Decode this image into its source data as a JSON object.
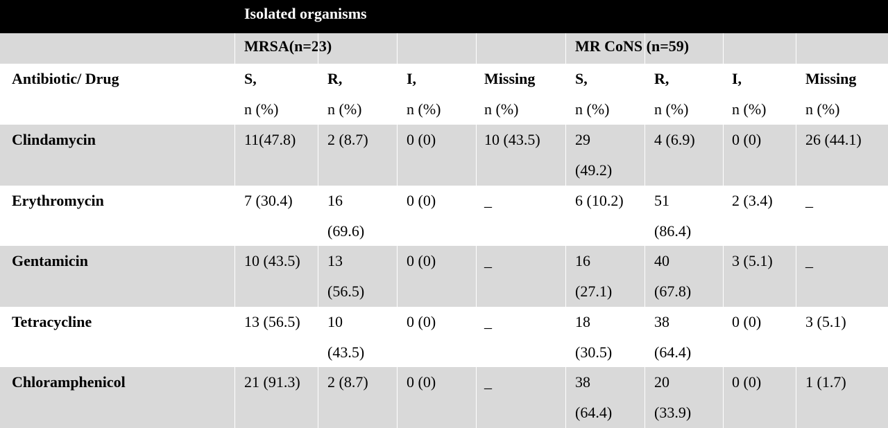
{
  "table": {
    "header_title": "Isolated organisms",
    "groups": [
      "MRSA(n=23)",
      "MR CoNS (n=59)"
    ],
    "first_column_label": "Antibiotic/ Drug",
    "column_headers": [
      "S,",
      "R,",
      "I,",
      "Missing",
      "S,",
      "R,",
      "I,",
      "Missing"
    ],
    "column_units": [
      "n (%)",
      "n (%)",
      "n (%)",
      "n (%)",
      "n (%)",
      "n (%)",
      "n (%)",
      "n (%)"
    ],
    "rows": [
      {
        "drug": "Clindamycin",
        "cells": [
          [
            "11(47.8)"
          ],
          [
            "2 (8.7)"
          ],
          [
            "0 (0)"
          ],
          [
            "10 (43.5)"
          ],
          [
            "29",
            "(49.2)"
          ],
          [
            "4 (6.9)"
          ],
          [
            "0 (0)"
          ],
          [
            "26 (44.1)"
          ]
        ]
      },
      {
        "drug": "Erythromycin",
        "cells": [
          [
            "7 (30.4)"
          ],
          [
            "16",
            "(69.6)"
          ],
          [
            "0 (0)"
          ],
          [
            "_"
          ],
          [
            "6 (10.2)"
          ],
          [
            "51",
            "(86.4)"
          ],
          [
            "2 (3.4)"
          ],
          [
            "_"
          ]
        ]
      },
      {
        "drug": "Gentamicin",
        "cells": [
          [
            "10 (43.5)"
          ],
          [
            "13",
            "(56.5)"
          ],
          [
            "0 (0)"
          ],
          [
            "_"
          ],
          [
            "16",
            "(27.1)"
          ],
          [
            "40",
            "(67.8)"
          ],
          [
            "3 (5.1)"
          ],
          [
            "_"
          ]
        ]
      },
      {
        "drug": "Tetracycline",
        "cells": [
          [
            "13 (56.5)"
          ],
          [
            "10",
            "(43.5)"
          ],
          [
            "0 (0)"
          ],
          [
            "_"
          ],
          [
            "18",
            "(30.5)"
          ],
          [
            "38",
            "(64.4)"
          ],
          [
            "0 (0)"
          ],
          [
            "3 (5.1)"
          ]
        ]
      },
      {
        "drug": "Chloramphenicol",
        "cells": [
          [
            "21 (91.3)"
          ],
          [
            "2 (8.7)"
          ],
          [
            "0 (0)"
          ],
          [
            "_"
          ],
          [
            "38",
            "(64.4)"
          ],
          [
            "20",
            "(33.9)"
          ],
          [
            "0 (0)"
          ],
          [
            "1 (1.7)"
          ]
        ]
      }
    ],
    "colors": {
      "header_bg": "#000000",
      "header_text": "#ffffff",
      "band_bg": "#d9d9d9",
      "plain_bg": "#ffffff"
    }
  }
}
